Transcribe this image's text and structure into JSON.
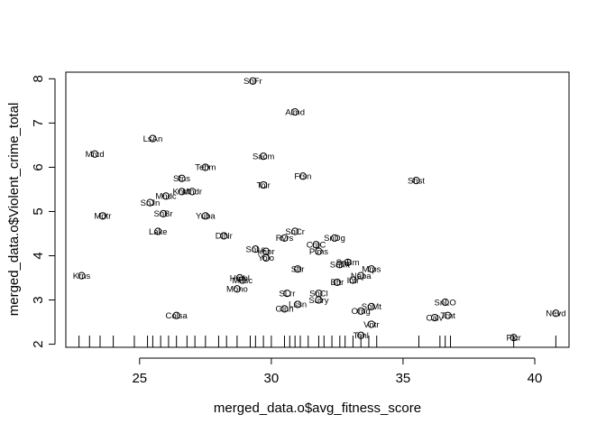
{
  "chart_data": {
    "type": "scatter",
    "xlabel": "merged_data.o$avg_fitness_score",
    "ylabel": "merged_data.o$Violent_crime_total",
    "xlim": [
      22.2,
      41.3
    ],
    "ylim": [
      1.93,
      8.15
    ],
    "x_ticks": [
      25,
      30,
      35,
      40
    ],
    "y_ticks": [
      2,
      3,
      4,
      5,
      6,
      7,
      8
    ],
    "grid": false,
    "point_shape": "open-circle",
    "points": [
      {
        "label": "SnFr",
        "x": 29.3,
        "y": 7.95
      },
      {
        "label": "Almd",
        "x": 30.9,
        "y": 7.25
      },
      {
        "label": "LsAn",
        "x": 25.5,
        "y": 6.65
      },
      {
        "label": "Mrcd",
        "x": 23.3,
        "y": 6.3
      },
      {
        "label": "Sacm",
        "x": 29.7,
        "y": 6.25
      },
      {
        "label": "Tehm",
        "x": 27.5,
        "y": 6.0
      },
      {
        "label": "Frsn",
        "x": 31.2,
        "y": 5.8
      },
      {
        "label": "Shst",
        "x": 35.5,
        "y": 5.7
      },
      {
        "label": "Stns",
        "x": 26.6,
        "y": 5.75
      },
      {
        "label": "Tolr",
        "x": 29.7,
        "y": 5.6
      },
      {
        "label": "Kndr",
        "x": 26.6,
        "y": 5.45
      },
      {
        "label": "Mndr",
        "x": 27.0,
        "y": 5.45
      },
      {
        "label": "Mndc",
        "x": 26.0,
        "y": 5.35
      },
      {
        "label": "SnJn",
        "x": 25.4,
        "y": 5.2
      },
      {
        "label": "SnBr",
        "x": 25.9,
        "y": 4.95
      },
      {
        "label": "Yuba",
        "x": 27.5,
        "y": 4.9
      },
      {
        "label": "Mdtr",
        "x": 23.6,
        "y": 4.9
      },
      {
        "label": "Lake",
        "x": 25.7,
        "y": 4.55
      },
      {
        "label": "DlNr",
        "x": 28.2,
        "y": 4.45
      },
      {
        "label": "SnCr",
        "x": 30.9,
        "y": 4.55
      },
      {
        "label": "Rvrs",
        "x": 30.5,
        "y": 4.4
      },
      {
        "label": "SnDg",
        "x": 32.4,
        "y": 4.4
      },
      {
        "label": "CntC",
        "x": 31.7,
        "y": 4.25
      },
      {
        "label": "SnLs",
        "x": 29.4,
        "y": 4.15
      },
      {
        "label": "Plms",
        "x": 31.8,
        "y": 4.1
      },
      {
        "label": "Impr",
        "x": 29.8,
        "y": 4.1
      },
      {
        "label": "Yolo",
        "x": 29.8,
        "y": 3.95
      },
      {
        "label": "SnBm",
        "x": 32.9,
        "y": 3.85
      },
      {
        "label": "SnMt",
        "x": 32.6,
        "y": 3.8
      },
      {
        "label": "Mrps",
        "x": 33.8,
        "y": 3.7
      },
      {
        "label": "Sttr",
        "x": 31.0,
        "y": 3.7
      },
      {
        "label": "Napa",
        "x": 33.4,
        "y": 3.55
      },
      {
        "label": "Hmbl",
        "x": 28.8,
        "y": 3.5
      },
      {
        "label": "Intr",
        "x": 33.1,
        "y": 3.45
      },
      {
        "label": "Mnsc",
        "x": 28.9,
        "y": 3.45
      },
      {
        "label": "Bttr",
        "x": 32.5,
        "y": 3.4
      },
      {
        "label": "Krns",
        "x": 22.8,
        "y": 3.55
      },
      {
        "label": "Mono",
        "x": 28.7,
        "y": 3.25
      },
      {
        "label": "SLrr",
        "x": 30.6,
        "y": 3.15
      },
      {
        "label": "SnCl",
        "x": 31.8,
        "y": 3.15
      },
      {
        "label": "Sutry",
        "x": 31.8,
        "y": 3.0
      },
      {
        "label": "Lssn",
        "x": 31.0,
        "y": 2.9
      },
      {
        "label": "Glnn",
        "x": 30.5,
        "y": 2.8
      },
      {
        "label": "SnLO",
        "x": 36.6,
        "y": 2.95
      },
      {
        "label": "SnMt",
        "x": 33.8,
        "y": 2.85
      },
      {
        "label": "Orng",
        "x": 33.4,
        "y": 2.75
      },
      {
        "label": "Nevd",
        "x": 40.8,
        "y": 2.7
      },
      {
        "label": "Colsa",
        "x": 26.4,
        "y": 2.65
      },
      {
        "label": "Trnt",
        "x": 36.7,
        "y": 2.65
      },
      {
        "label": "Calv",
        "x": 36.2,
        "y": 2.6
      },
      {
        "label": "Vntr",
        "x": 33.8,
        "y": 2.45
      },
      {
        "label": "Tehl",
        "x": 33.4,
        "y": 2.2
      },
      {
        "label": "Plcr",
        "x": 39.2,
        "y": 2.15
      }
    ],
    "rug_x": [
      22.7,
      23.1,
      23.5,
      24.0,
      24.8,
      25.3,
      25.5,
      25.8,
      26.1,
      26.4,
      26.8,
      27.1,
      27.5,
      28.0,
      28.3,
      28.7,
      29.2,
      29.4,
      29.7,
      30.0,
      30.5,
      30.7,
      30.9,
      31.1,
      31.4,
      31.8,
      32.0,
      32.3,
      32.6,
      32.8,
      33.1,
      33.4,
      33.7,
      34.0,
      35.6,
      36.4,
      36.6,
      36.8,
      39.2,
      40.8
    ]
  }
}
